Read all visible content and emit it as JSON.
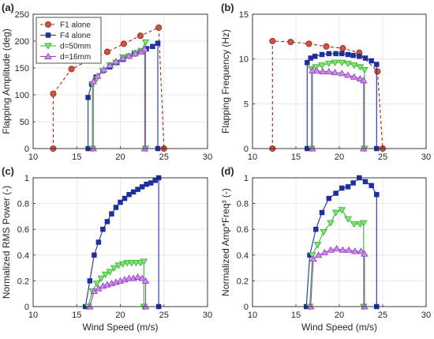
{
  "figure": {
    "xlabel": "Wind Speed (m/s)",
    "legend": [
      "F1 alone",
      "F4 alone",
      "d=50mm",
      "d=16mm"
    ]
  },
  "series_styles": [
    {
      "color": "#a0291e",
      "marker": "circle",
      "marker_fill": "#c8553d",
      "dash": true
    },
    {
      "color": "#1f2f9c",
      "marker": "square",
      "marker_fill": "#1f2f9c",
      "dash": false
    },
    {
      "color": "#2fb72f",
      "marker": "triangle-down",
      "marker_fill": "#8fe07a",
      "dash": false
    },
    {
      "color": "#9b3fc7",
      "marker": "triangle-up",
      "marker_fill": "#c792e8",
      "dash": false
    }
  ],
  "chart_data": [
    {
      "type": "line",
      "panel_label": "(a)",
      "ylabel": "Flapping Amplitude (deg)",
      "xlabel": "",
      "xlim": [
        10,
        30
      ],
      "ylim": [
        0,
        250
      ],
      "xticks": [
        "10",
        "15",
        "20",
        "25",
        "30"
      ],
      "yticks": [
        "0",
        "50",
        "100",
        "150",
        "200",
        "250"
      ],
      "legend_position": "top-left",
      "series": [
        {
          "name": "F1 alone",
          "x": [
            12.3,
            12.3,
            14.4,
            16.5,
            18.5,
            20.4,
            22.3,
            24.4,
            25.0
          ],
          "y": [
            0,
            102,
            148,
            165,
            180,
            195,
            210,
            225,
            0
          ]
        },
        {
          "name": "F4 alone",
          "x": [
            16.3,
            16.3,
            16.7,
            17.2,
            18.0,
            18.8,
            19.6,
            20.3,
            21.0,
            21.6,
            22.3,
            23.0,
            23.7,
            24.3,
            24.3
          ],
          "y": [
            0,
            95,
            120,
            133,
            145,
            152,
            160,
            166,
            172,
            176,
            180,
            186,
            190,
            196,
            0
          ]
        },
        {
          "name": "d=50mm",
          "x": [
            16.8,
            16.8,
            17.3,
            18.0,
            18.8,
            19.5,
            20.3,
            21.0,
            21.7,
            22.4,
            22.9,
            22.9
          ],
          "y": [
            0,
            120,
            130,
            145,
            155,
            160,
            170,
            172,
            178,
            182,
            198,
            0
          ]
        },
        {
          "name": "d=16mm",
          "x": [
            16.9,
            16.9,
            17.4,
            18.1,
            18.8,
            19.5,
            20.3,
            21.0,
            21.7,
            22.4,
            22.8,
            22.8
          ],
          "y": [
            0,
            125,
            135,
            147,
            155,
            162,
            168,
            172,
            177,
            180,
            185,
            0
          ]
        }
      ]
    },
    {
      "type": "line",
      "panel_label": "(b)",
      "ylabel": "Flapping Frequency (Hz)",
      "xlabel": "",
      "xlim": [
        10,
        30
      ],
      "ylim": [
        0,
        15
      ],
      "xticks": [
        "10",
        "15",
        "20",
        "25",
        "30"
      ],
      "yticks": [
        "0",
        "5",
        "10",
        "15"
      ],
      "series": [
        {
          "name": "F1 alone",
          "x": [
            12.3,
            12.3,
            14.4,
            16.5,
            18.5,
            20.4,
            22.3,
            24.4,
            25.0
          ],
          "y": [
            0,
            12.0,
            11.9,
            11.7,
            11.4,
            11.2,
            10.7,
            8.6,
            0
          ]
        },
        {
          "name": "F4 alone",
          "x": [
            16.3,
            16.3,
            16.7,
            17.2,
            18.0,
            18.8,
            19.6,
            20.3,
            21.0,
            21.6,
            22.3,
            23.0,
            23.7,
            24.3,
            24.3
          ],
          "y": [
            0,
            9.6,
            10.1,
            10.3,
            10.5,
            10.6,
            10.6,
            10.6,
            10.5,
            10.4,
            10.3,
            10.1,
            9.8,
            9.4,
            0
          ]
        },
        {
          "name": "d=50mm",
          "x": [
            16.8,
            16.8,
            17.3,
            18.0,
            18.8,
            19.5,
            20.3,
            21.0,
            21.7,
            22.4,
            22.9,
            22.9
          ],
          "y": [
            0,
            8.9,
            9.1,
            9.3,
            9.5,
            9.6,
            9.6,
            9.5,
            9.3,
            9.1,
            8.8,
            0
          ]
        },
        {
          "name": "d=16mm",
          "x": [
            16.9,
            16.9,
            17.4,
            18.1,
            18.8,
            19.5,
            20.3,
            21.0,
            21.7,
            22.4,
            22.8,
            22.8
          ],
          "y": [
            0,
            8.7,
            8.7,
            8.6,
            8.6,
            8.5,
            8.4,
            8.2,
            8.0,
            7.8,
            7.6,
            0
          ]
        }
      ]
    },
    {
      "type": "line",
      "panel_label": "(c)",
      "ylabel": "Normalized RMS Power (-)",
      "xlabel": "Wind Speed (m/s)",
      "xlim": [
        10,
        30
      ],
      "ylim": [
        0,
        1
      ],
      "xticks": [
        "10",
        "15",
        "20",
        "25",
        "30"
      ],
      "yticks": [
        "0",
        "0.2",
        "0.4",
        "0.6",
        "0.8",
        "1"
      ],
      "series": [
        {
          "name": "F4 alone",
          "x": [
            16.0,
            16.5,
            17.0,
            17.5,
            18.0,
            18.5,
            19.0,
            19.5,
            20.0,
            20.5,
            21.0,
            21.5,
            22.0,
            22.5,
            23.0,
            23.5,
            24.0,
            24.4,
            24.4
          ],
          "y": [
            0,
            0.2,
            0.4,
            0.5,
            0.6,
            0.66,
            0.72,
            0.77,
            0.81,
            0.84,
            0.87,
            0.89,
            0.91,
            0.93,
            0.95,
            0.96,
            0.98,
            1.0,
            0
          ]
        },
        {
          "name": "d=50mm",
          "x": [
            16.3,
            16.8,
            17.3,
            17.8,
            18.3,
            18.8,
            19.3,
            19.8,
            20.3,
            20.8,
            21.3,
            21.8,
            22.3,
            22.7,
            22.7
          ],
          "y": [
            0,
            0.12,
            0.18,
            0.22,
            0.25,
            0.27,
            0.3,
            0.32,
            0.33,
            0.34,
            0.34,
            0.34,
            0.34,
            0.35,
            0
          ]
        },
        {
          "name": "d=16mm",
          "x": [
            16.5,
            17.0,
            17.5,
            18.0,
            18.5,
            19.0,
            19.5,
            20.0,
            20.5,
            21.0,
            21.5,
            22.0,
            22.5,
            22.9,
            22.9
          ],
          "y": [
            0,
            0.12,
            0.14,
            0.16,
            0.17,
            0.18,
            0.19,
            0.2,
            0.21,
            0.22,
            0.22,
            0.23,
            0.22,
            0.2,
            0
          ]
        }
      ]
    },
    {
      "type": "line",
      "panel_label": "(d)",
      "ylabel": "Normalized Amp*Freq³ (-)",
      "xlabel": "Wind Speed (m/s)",
      "xlim": [
        10,
        30
      ],
      "ylim": [
        0,
        1
      ],
      "xticks": [
        "10",
        "15",
        "20",
        "25",
        "30"
      ],
      "yticks": [
        "0",
        "0.2",
        "0.4",
        "0.6",
        "0.8",
        "1"
      ],
      "series": [
        {
          "name": "F4 alone",
          "x": [
            16.2,
            16.6,
            17.3,
            18.0,
            18.8,
            19.6,
            20.3,
            21.0,
            21.6,
            22.3,
            23.0,
            23.7,
            24.3,
            24.3
          ],
          "y": [
            0,
            0.4,
            0.6,
            0.73,
            0.84,
            0.88,
            0.92,
            0.93,
            0.96,
            1.0,
            0.97,
            0.94,
            0.87,
            0
          ]
        },
        {
          "name": "d=50mm",
          "x": [
            16.6,
            16.9,
            17.5,
            18.2,
            19.0,
            19.6,
            20.3,
            21.0,
            21.7,
            22.4,
            22.8,
            22.8
          ],
          "y": [
            0,
            0.4,
            0.48,
            0.58,
            0.65,
            0.73,
            0.75,
            0.68,
            0.64,
            0.64,
            0.65,
            0
          ]
        },
        {
          "name": "d=16mm",
          "x": [
            16.7,
            17.0,
            17.6,
            18.3,
            19.0,
            19.7,
            20.4,
            21.1,
            21.8,
            22.5,
            22.9,
            22.9
          ],
          "y": [
            0,
            0.37,
            0.4,
            0.42,
            0.44,
            0.45,
            0.44,
            0.44,
            0.43,
            0.43,
            0.41,
            0
          ]
        }
      ]
    }
  ]
}
